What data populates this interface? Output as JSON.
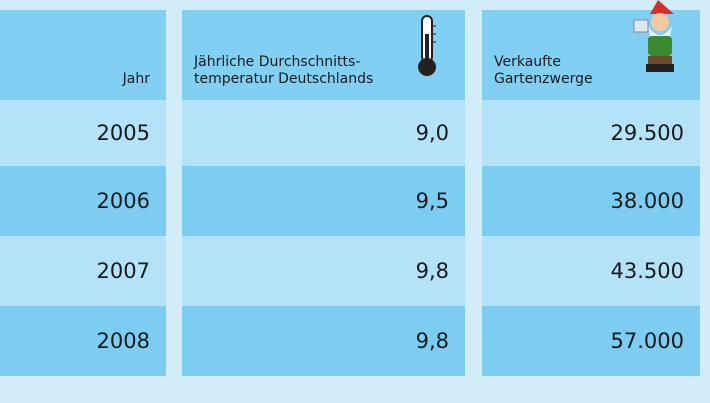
{
  "table": {
    "header": [
      [
        "Jahr"
      ],
      [
        "Jährliche Durchschnitts-",
        "temperatur Deutschlands"
      ],
      [
        "Verkaufte",
        "Gartenzwerge"
      ]
    ],
    "rows": [
      [
        "2005",
        "9,0",
        "29.500"
      ],
      [
        "2006",
        "9,5",
        "38.000"
      ],
      [
        "2007",
        "9,8",
        "43.500"
      ],
      [
        "2008",
        "9,8",
        "57.000"
      ]
    ]
  }
}
